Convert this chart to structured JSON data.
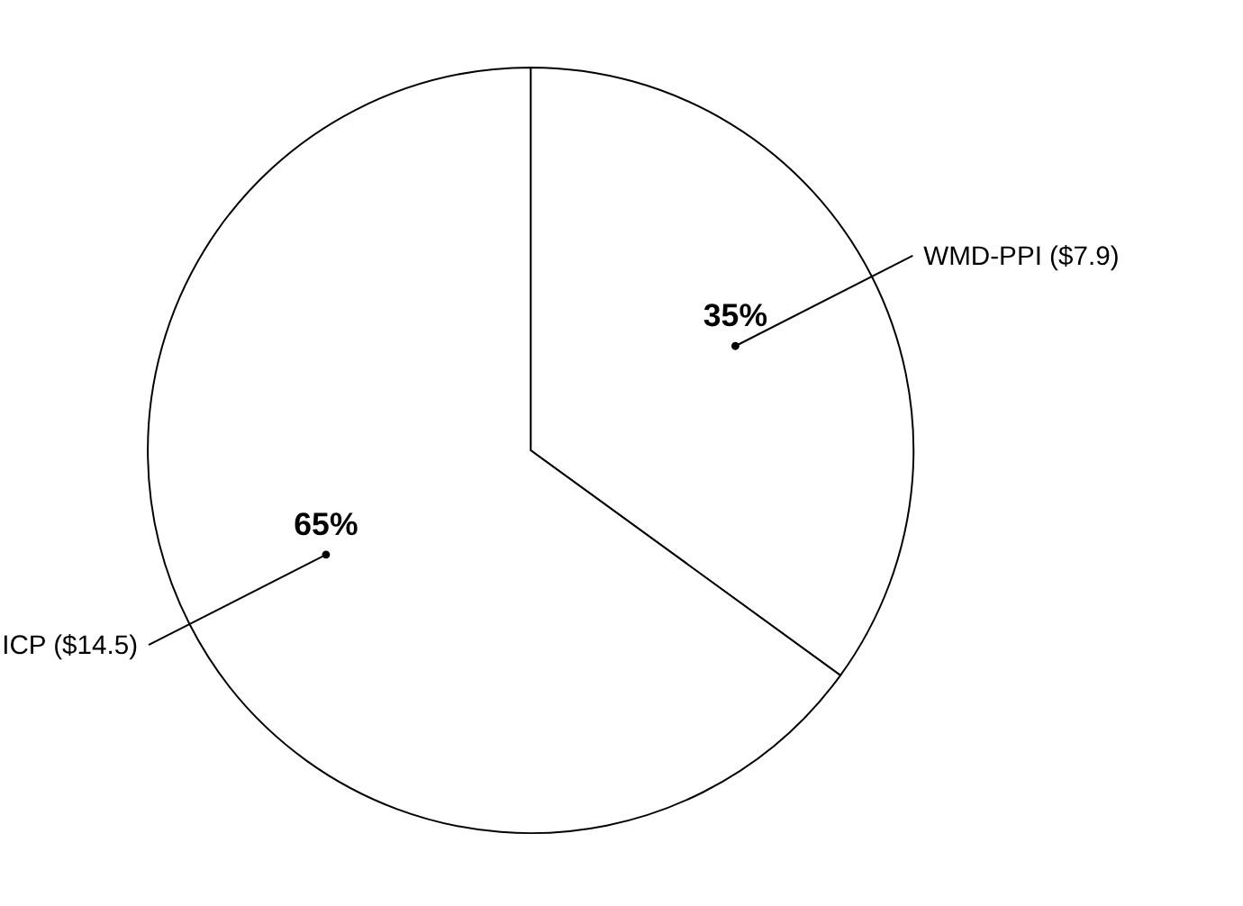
{
  "chart_data": {
    "type": "pie",
    "categories": [
      "WMD-PPI ($7.9)",
      "ICP ($14.5)"
    ],
    "values": [
      35,
      65
    ],
    "colors": [
      "#ffffff",
      "#ffffff"
    ],
    "value_labels": [
      "35%",
      "65%"
    ],
    "legend": false
  }
}
